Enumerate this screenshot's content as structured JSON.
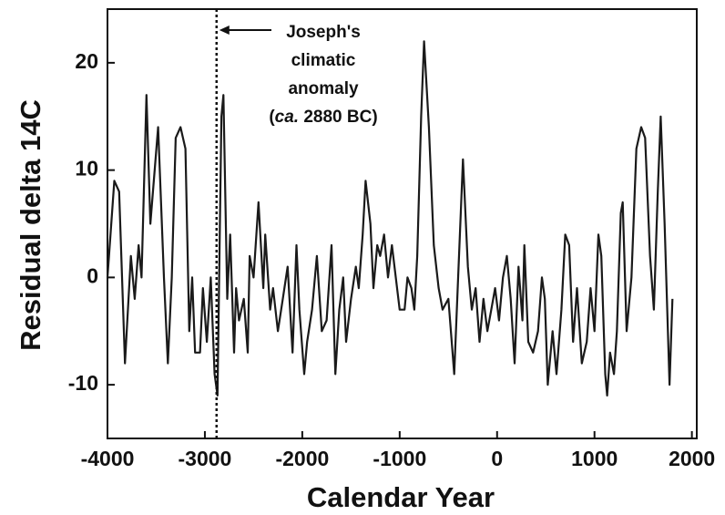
{
  "chart_data": {
    "type": "line",
    "xlabel": "Calendar Year",
    "ylabel": "Residual delta 14C",
    "xlim": [
      -4000,
      2050
    ],
    "ylim": [
      -15,
      25
    ],
    "xticks": [
      -4000,
      -3000,
      -2000,
      -1000,
      0,
      1000,
      2000
    ],
    "yticks": [
      -10,
      0,
      10,
      20
    ],
    "color": "#1a1a1a",
    "annotation": {
      "x": -2880,
      "lines": [
        "Joseph's",
        "climatic",
        "anomaly"
      ],
      "last_line": [
        "(",
        "ca.",
        " 2880 BC)"
      ]
    },
    "x": [
      -4000,
      -3930,
      -3880,
      -3820,
      -3760,
      -3720,
      -3680,
      -3650,
      -3600,
      -3560,
      -3480,
      -3420,
      -3380,
      -3340,
      -3300,
      -3250,
      -3200,
      -3160,
      -3130,
      -3100,
      -3050,
      -3020,
      -2980,
      -2940,
      -2900,
      -2870,
      -2830,
      -2810,
      -2770,
      -2740,
      -2700,
      -2680,
      -2650,
      -2600,
      -2560,
      -2540,
      -2500,
      -2450,
      -2400,
      -2380,
      -2330,
      -2300,
      -2250,
      -2200,
      -2150,
      -2100,
      -2060,
      -2030,
      -1980,
      -1950,
      -1900,
      -1850,
      -1800,
      -1750,
      -1700,
      -1660,
      -1620,
      -1580,
      -1550,
      -1500,
      -1450,
      -1420,
      -1380,
      -1350,
      -1300,
      -1270,
      -1230,
      -1200,
      -1160,
      -1120,
      -1080,
      -1000,
      -950,
      -920,
      -880,
      -850,
      -820,
      -780,
      -750,
      -700,
      -650,
      -600,
      -560,
      -500,
      -440,
      -400,
      -350,
      -300,
      -260,
      -220,
      -180,
      -140,
      -100,
      -60,
      -20,
      20,
      60,
      100,
      140,
      180,
      220,
      260,
      280,
      320,
      370,
      420,
      460,
      490,
      520,
      570,
      610,
      660,
      700,
      740,
      780,
      820,
      870,
      920,
      960,
      1000,
      1040,
      1070,
      1110,
      1130,
      1160,
      1200,
      1230,
      1270,
      1290,
      1330,
      1380,
      1430,
      1480,
      1520,
      1570,
      1610,
      1650,
      1680,
      1720,
      1770,
      1800
    ],
    "values": [
      0,
      9,
      8,
      -8,
      2,
      -2,
      3,
      0,
      17,
      5,
      14,
      0,
      -8,
      0,
      13,
      14,
      12,
      -5,
      0,
      -7,
      -7,
      -1,
      -6,
      0,
      -9,
      -11,
      15,
      17,
      -2,
      4,
      -7,
      -1,
      -4,
      -2,
      -7,
      2,
      0,
      7,
      -1,
      4,
      -3,
      -1,
      -5,
      -2,
      1,
      -7,
      3,
      -3,
      -9,
      -6,
      -3,
      2,
      -5,
      -4,
      3,
      -9,
      -3,
      0,
      -6,
      -2,
      1,
      -1,
      4,
      9,
      5,
      -1,
      3,
      2,
      4,
      0,
      3,
      -3,
      -3,
      0,
      -1,
      -3,
      2,
      15,
      22,
      14,
      3,
      -1,
      -3,
      -2,
      -9,
      0,
      11,
      1,
      -3,
      -1,
      -6,
      -2,
      -5,
      -3,
      -1,
      -4,
      0,
      2,
      -2,
      -8,
      1,
      -4,
      3,
      -6,
      -7,
      -5,
      0,
      -2,
      -10,
      -5,
      -9,
      -3,
      4,
      3,
      -6,
      -1,
      -8,
      -6,
      -1,
      -5,
      4,
      2,
      -9,
      -11,
      -7,
      -9,
      -5,
      6,
      7,
      -5,
      0,
      12,
      14,
      13,
      2,
      -3,
      8,
      15,
      5,
      -10,
      -2
    ]
  }
}
